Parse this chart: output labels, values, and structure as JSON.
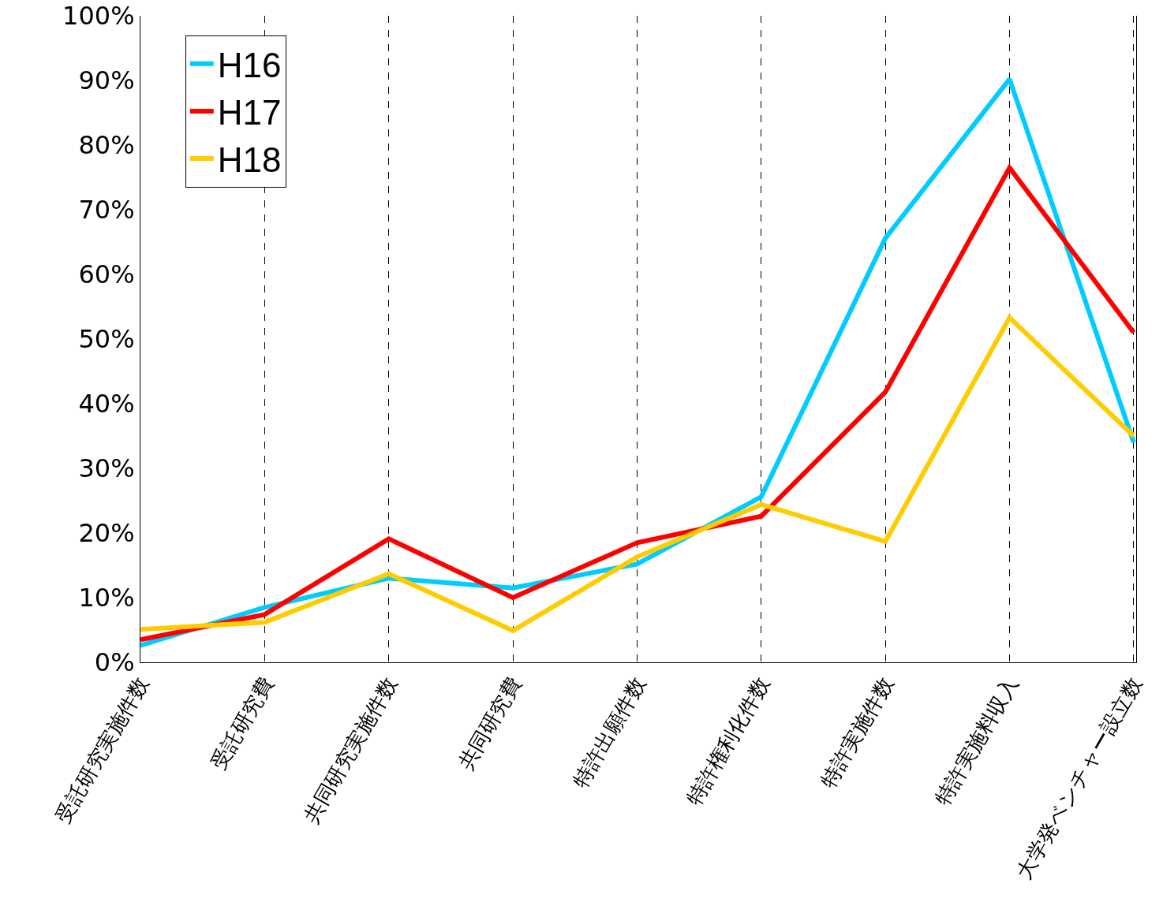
{
  "chart_data": {
    "type": "line",
    "categories": [
      "受託研究実施件数",
      "受託研究費",
      "共同研究実施件数",
      "共同研究費",
      "特許出願件数",
      "特許権利化件数",
      "特許実施件数",
      "特許実施料収入",
      "大学発ベンチャー設立数"
    ],
    "series": [
      {
        "name": "H16",
        "color": "#00ccff",
        "values": [
          2.6,
          8.5,
          13,
          11.5,
          15.2,
          25.6,
          65.6,
          90.2,
          34
        ]
      },
      {
        "name": "H17",
        "color": "#ff0000",
        "values": [
          3.5,
          7.4,
          19.1,
          10,
          18.5,
          22.6,
          41.8,
          76.5,
          51
        ]
      },
      {
        "name": "H18",
        "color": "#ffcc00",
        "values": [
          5.1,
          6.2,
          13.7,
          4.9,
          16.3,
          24.4,
          18.7,
          53.3,
          35
        ]
      }
    ],
    "ylim": [
      0,
      100
    ],
    "yticks": [
      {
        "value": 0,
        "label": "0%"
      },
      {
        "value": 10,
        "label": "10%"
      },
      {
        "value": 20,
        "label": "20%"
      },
      {
        "value": 30,
        "label": "30%"
      },
      {
        "value": 40,
        "label": "40%"
      },
      {
        "value": 50,
        "label": "50%"
      },
      {
        "value": 60,
        "label": "60%"
      },
      {
        "value": 70,
        "label": "70%"
      },
      {
        "value": 80,
        "label": "80%"
      },
      {
        "value": 90,
        "label": "90%"
      },
      {
        "value": 100,
        "label": "100%"
      }
    ],
    "grid": "x",
    "legend": "top left",
    "marker": "none",
    "line_style": "solid"
  }
}
